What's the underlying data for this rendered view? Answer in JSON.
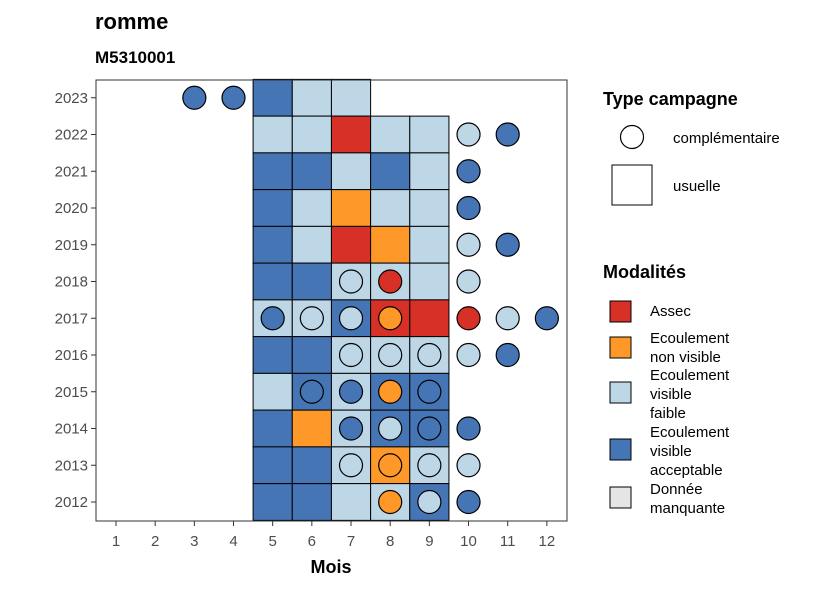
{
  "chart_data": {
    "type": "heatmap",
    "title": "romme",
    "subtitle": "M5310001",
    "xlabel": "Mois",
    "ylabel": "",
    "x_ticks": [
      "1",
      "2",
      "3",
      "4",
      "5",
      "6",
      "7",
      "8",
      "9",
      "10",
      "11",
      "12"
    ],
    "y_ticks": [
      "2012",
      "2013",
      "2014",
      "2015",
      "2016",
      "2017",
      "2018",
      "2019",
      "2020",
      "2021",
      "2022",
      "2023"
    ],
    "colors": {
      "Assec": "#d73027",
      "Ecoulement non visible": "#fe9929",
      "Ecoulement visible faible": "#bdd7e7",
      "Ecoulement visible acceptable": "#4575b4",
      "Donnée manquante": "#e5e5e5"
    },
    "cells": [
      {
        "year": 2023,
        "month": 5,
        "mod": "Ecoulement visible acceptable"
      },
      {
        "year": 2023,
        "month": 6,
        "mod": "Ecoulement visible faible"
      },
      {
        "year": 2023,
        "month": 7,
        "mod": "Ecoulement visible faible"
      },
      {
        "year": 2022,
        "month": 5,
        "mod": "Ecoulement visible faible"
      },
      {
        "year": 2022,
        "month": 6,
        "mod": "Ecoulement visible faible"
      },
      {
        "year": 2022,
        "month": 7,
        "mod": "Assec"
      },
      {
        "year": 2022,
        "month": 8,
        "mod": "Ecoulement visible faible"
      },
      {
        "year": 2022,
        "month": 9,
        "mod": "Ecoulement visible faible"
      },
      {
        "year": 2021,
        "month": 5,
        "mod": "Ecoulement visible acceptable"
      },
      {
        "year": 2021,
        "month": 6,
        "mod": "Ecoulement visible acceptable"
      },
      {
        "year": 2021,
        "month": 7,
        "mod": "Ecoulement visible faible"
      },
      {
        "year": 2021,
        "month": 8,
        "mod": "Ecoulement visible acceptable"
      },
      {
        "year": 2021,
        "month": 9,
        "mod": "Ecoulement visible faible"
      },
      {
        "year": 2020,
        "month": 5,
        "mod": "Ecoulement visible acceptable"
      },
      {
        "year": 2020,
        "month": 6,
        "mod": "Ecoulement visible faible"
      },
      {
        "year": 2020,
        "month": 7,
        "mod": "Ecoulement non visible"
      },
      {
        "year": 2020,
        "month": 8,
        "mod": "Ecoulement visible faible"
      },
      {
        "year": 2020,
        "month": 9,
        "mod": "Ecoulement visible faible"
      },
      {
        "year": 2019,
        "month": 5,
        "mod": "Ecoulement visible acceptable"
      },
      {
        "year": 2019,
        "month": 6,
        "mod": "Ecoulement visible faible"
      },
      {
        "year": 2019,
        "month": 7,
        "mod": "Assec"
      },
      {
        "year": 2019,
        "month": 8,
        "mod": "Ecoulement non visible"
      },
      {
        "year": 2019,
        "month": 9,
        "mod": "Ecoulement visible faible"
      },
      {
        "year": 2018,
        "month": 5,
        "mod": "Ecoulement visible acceptable"
      },
      {
        "year": 2018,
        "month": 6,
        "mod": "Ecoulement visible acceptable"
      },
      {
        "year": 2018,
        "month": 7,
        "mod": "Ecoulement visible faible"
      },
      {
        "year": 2018,
        "month": 8,
        "mod": "Ecoulement visible faible"
      },
      {
        "year": 2018,
        "month": 9,
        "mod": "Ecoulement visible faible"
      },
      {
        "year": 2017,
        "month": 5,
        "mod": "Ecoulement visible faible"
      },
      {
        "year": 2017,
        "month": 6,
        "mod": "Ecoulement visible faible"
      },
      {
        "year": 2017,
        "month": 7,
        "mod": "Ecoulement visible acceptable"
      },
      {
        "year": 2017,
        "month": 8,
        "mod": "Assec"
      },
      {
        "year": 2017,
        "month": 9,
        "mod": "Assec"
      },
      {
        "year": 2016,
        "month": 5,
        "mod": "Ecoulement visible acceptable"
      },
      {
        "year": 2016,
        "month": 6,
        "mod": "Ecoulement visible acceptable"
      },
      {
        "year": 2016,
        "month": 7,
        "mod": "Ecoulement visible faible"
      },
      {
        "year": 2016,
        "month": 8,
        "mod": "Ecoulement visible faible"
      },
      {
        "year": 2016,
        "month": 9,
        "mod": "Ecoulement visible faible"
      },
      {
        "year": 2015,
        "month": 5,
        "mod": "Ecoulement visible faible"
      },
      {
        "year": 2015,
        "month": 6,
        "mod": "Ecoulement visible acceptable"
      },
      {
        "year": 2015,
        "month": 7,
        "mod": "Ecoulement visible faible"
      },
      {
        "year": 2015,
        "month": 8,
        "mod": "Ecoulement visible acceptable"
      },
      {
        "year": 2015,
        "month": 9,
        "mod": "Ecoulement visible acceptable"
      },
      {
        "year": 2014,
        "month": 5,
        "mod": "Ecoulement visible acceptable"
      },
      {
        "year": 2014,
        "month": 6,
        "mod": "Ecoulement non visible"
      },
      {
        "year": 2014,
        "month": 7,
        "mod": "Ecoulement visible faible"
      },
      {
        "year": 2014,
        "month": 8,
        "mod": "Ecoulement visible acceptable"
      },
      {
        "year": 2014,
        "month": 9,
        "mod": "Ecoulement visible acceptable"
      },
      {
        "year": 2013,
        "month": 5,
        "mod": "Ecoulement visible acceptable"
      },
      {
        "year": 2013,
        "month": 6,
        "mod": "Ecoulement visible acceptable"
      },
      {
        "year": 2013,
        "month": 7,
        "mod": "Ecoulement visible faible"
      },
      {
        "year": 2013,
        "month": 8,
        "mod": "Ecoulement non visible"
      },
      {
        "year": 2013,
        "month": 9,
        "mod": "Ecoulement visible faible"
      },
      {
        "year": 2012,
        "month": 5,
        "mod": "Ecoulement visible acceptable"
      },
      {
        "year": 2012,
        "month": 6,
        "mod": "Ecoulement visible acceptable"
      },
      {
        "year": 2012,
        "month": 7,
        "mod": "Ecoulement visible faible"
      },
      {
        "year": 2012,
        "month": 8,
        "mod": "Ecoulement visible faible"
      },
      {
        "year": 2012,
        "month": 9,
        "mod": "Ecoulement visible acceptable"
      }
    ],
    "points": [
      {
        "year": 2023,
        "month": 3,
        "mod": "Ecoulement visible acceptable"
      },
      {
        "year": 2023,
        "month": 4,
        "mod": "Ecoulement visible acceptable"
      },
      {
        "year": 2022,
        "month": 10,
        "mod": "Ecoulement visible faible"
      },
      {
        "year": 2022,
        "month": 11,
        "mod": "Ecoulement visible acceptable"
      },
      {
        "year": 2021,
        "month": 10,
        "mod": "Ecoulement visible acceptable"
      },
      {
        "year": 2020,
        "month": 10,
        "mod": "Ecoulement visible acceptable"
      },
      {
        "year": 2019,
        "month": 10,
        "mod": "Ecoulement visible faible"
      },
      {
        "year": 2019,
        "month": 11,
        "mod": "Ecoulement visible acceptable"
      },
      {
        "year": 2018,
        "month": 7,
        "mod": "Ecoulement visible faible"
      },
      {
        "year": 2018,
        "month": 8,
        "mod": "Assec"
      },
      {
        "year": 2018,
        "month": 10,
        "mod": "Ecoulement visible faible"
      },
      {
        "year": 2017,
        "month": 5,
        "mod": "Ecoulement visible acceptable"
      },
      {
        "year": 2017,
        "month": 6,
        "mod": "Ecoulement visible faible"
      },
      {
        "year": 2017,
        "month": 7,
        "mod": "Ecoulement visible faible"
      },
      {
        "year": 2017,
        "month": 8,
        "mod": "Ecoulement non visible"
      },
      {
        "year": 2017,
        "month": 10,
        "mod": "Assec"
      },
      {
        "year": 2017,
        "month": 11,
        "mod": "Ecoulement visible faible"
      },
      {
        "year": 2017,
        "month": 12,
        "mod": "Ecoulement visible acceptable"
      },
      {
        "year": 2016,
        "month": 7,
        "mod": "Ecoulement visible faible"
      },
      {
        "year": 2016,
        "month": 8,
        "mod": "Ecoulement visible faible"
      },
      {
        "year": 2016,
        "month": 9,
        "mod": "Ecoulement visible faible"
      },
      {
        "year": 2016,
        "month": 10,
        "mod": "Ecoulement visible faible"
      },
      {
        "year": 2016,
        "month": 11,
        "mod": "Ecoulement visible acceptable"
      },
      {
        "year": 2015,
        "month": 6,
        "mod": "Ecoulement visible acceptable"
      },
      {
        "year": 2015,
        "month": 7,
        "mod": "Ecoulement visible acceptable"
      },
      {
        "year": 2015,
        "month": 8,
        "mod": "Ecoulement non visible"
      },
      {
        "year": 2015,
        "month": 9,
        "mod": "Ecoulement visible acceptable"
      },
      {
        "year": 2014,
        "month": 7,
        "mod": "Ecoulement visible acceptable"
      },
      {
        "year": 2014,
        "month": 8,
        "mod": "Ecoulement visible faible"
      },
      {
        "year": 2014,
        "month": 9,
        "mod": "Ecoulement visible acceptable"
      },
      {
        "year": 2014,
        "month": 10,
        "mod": "Ecoulement visible acceptable"
      },
      {
        "year": 2013,
        "month": 7,
        "mod": "Ecoulement visible faible"
      },
      {
        "year": 2013,
        "month": 8,
        "mod": "Ecoulement non visible"
      },
      {
        "year": 2013,
        "month": 9,
        "mod": "Ecoulement visible faible"
      },
      {
        "year": 2013,
        "month": 10,
        "mod": "Ecoulement visible faible"
      },
      {
        "year": 2012,
        "month": 8,
        "mod": "Ecoulement non visible"
      },
      {
        "year": 2012,
        "month": 9,
        "mod": "Ecoulement visible faible"
      },
      {
        "year": 2012,
        "month": 10,
        "mod": "Ecoulement visible acceptable"
      }
    ],
    "legend": {
      "placement": "right",
      "type_title": "Type campagne",
      "types": [
        {
          "shape": "circle",
          "label": "complémentaire"
        },
        {
          "shape": "square",
          "label": "usuelle"
        }
      ],
      "mod_title": "Modalités",
      "modalities": [
        {
          "key": "Assec",
          "lines": [
            "Assec"
          ]
        },
        {
          "key": "Ecoulement non visible",
          "lines": [
            "Ecoulement",
            "non visible"
          ]
        },
        {
          "key": "Ecoulement visible faible",
          "lines": [
            "Ecoulement",
            "visible",
            "faible"
          ]
        },
        {
          "key": "Ecoulement visible acceptable",
          "lines": [
            "Ecoulement",
            "visible",
            "acceptable"
          ]
        },
        {
          "key": "Donnée manquante",
          "lines": [
            "Donnée",
            "manquante"
          ]
        }
      ]
    }
  }
}
